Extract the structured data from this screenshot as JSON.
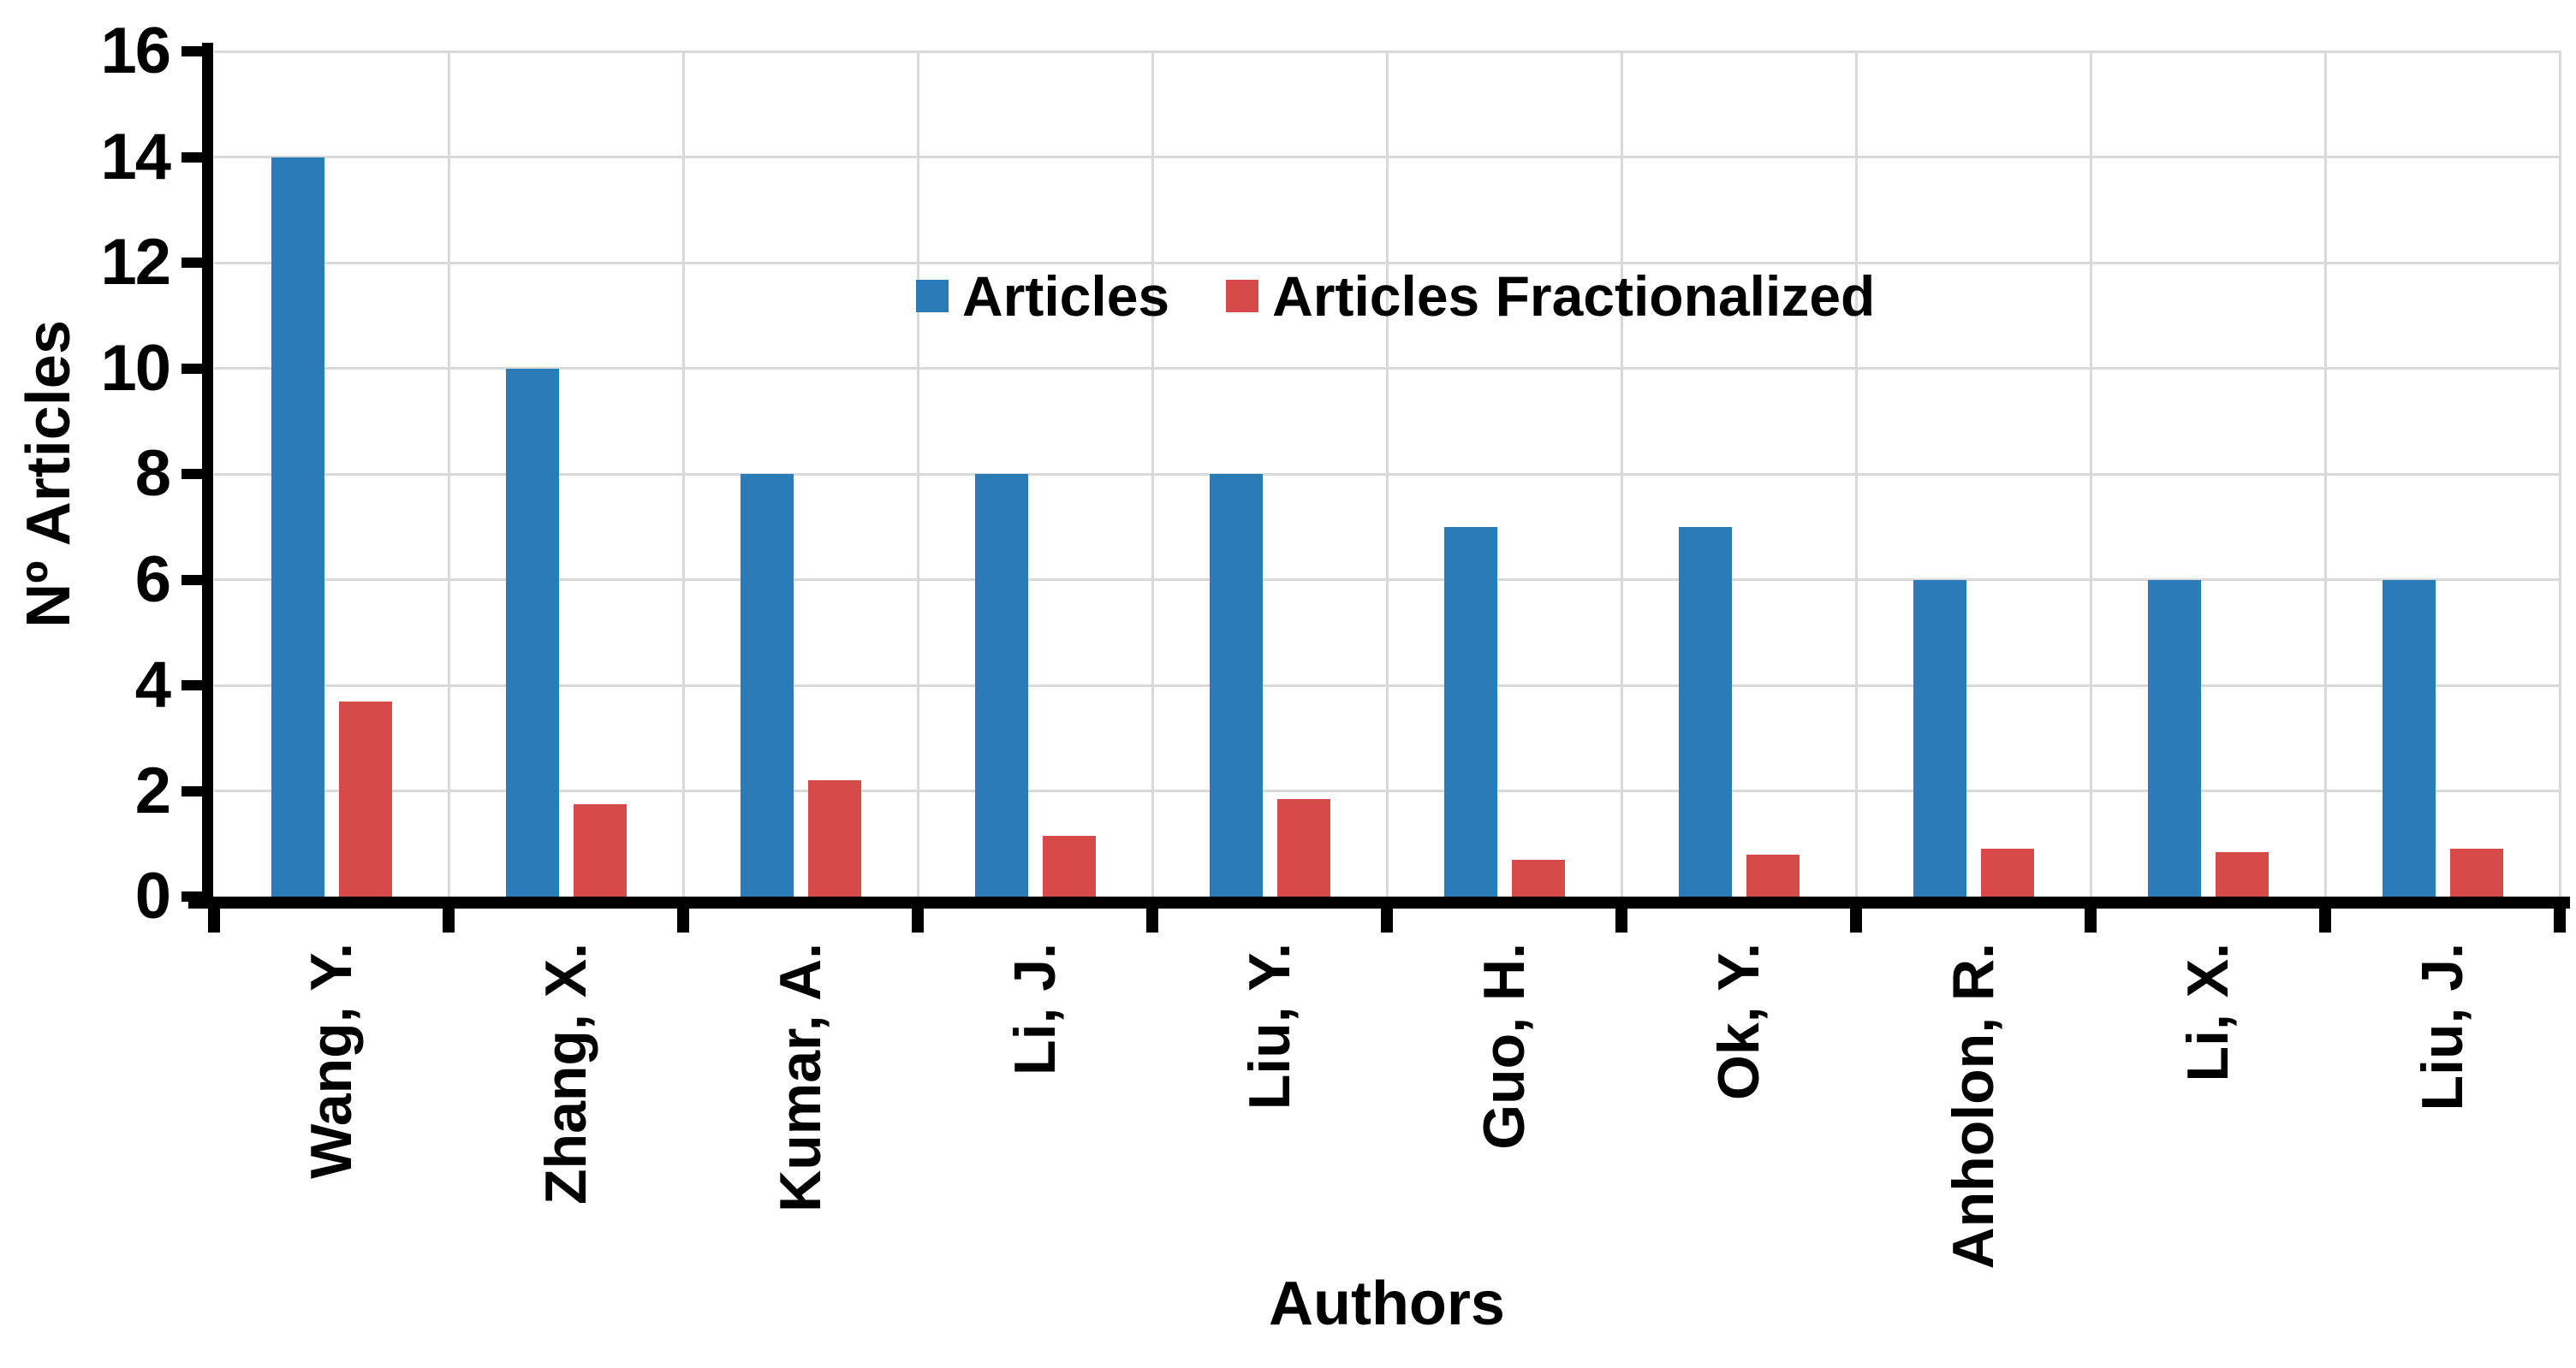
{
  "chart_data": {
    "type": "bar",
    "title": "",
    "xlabel": "Authors",
    "ylabel": "Nº Articles",
    "categories": [
      "Wang, Y.",
      "Zhang, X.",
      "Kumar, A.",
      "Li, J.",
      "Liu, Y.",
      "Guo, H.",
      "Ok, Y.",
      "Anholon, R.",
      "Li, X.",
      "Liu, J."
    ],
    "series": [
      {
        "name": "Articles",
        "color": "#2c7bb9",
        "values": [
          14,
          10,
          8,
          8,
          8,
          7,
          7,
          6,
          6,
          6
        ]
      },
      {
        "name": "Articles Fractionalized",
        "color": "#d64a4a",
        "values": [
          3.7,
          1.75,
          2.2,
          1.15,
          1.85,
          0.7,
          0.8,
          0.9,
          0.85,
          0.9
        ]
      }
    ],
    "ylim": [
      0,
      16
    ],
    "ytick_step": 2,
    "y_tick_labels": [
      "0",
      "2",
      "4",
      "6",
      "8",
      "10",
      "12",
      "14",
      "16"
    ],
    "grid": "on",
    "gridline_color": "#d9d9d9",
    "axis_color": "#000000",
    "text_color": "#000000",
    "legend_position": "inside-top-center"
  }
}
